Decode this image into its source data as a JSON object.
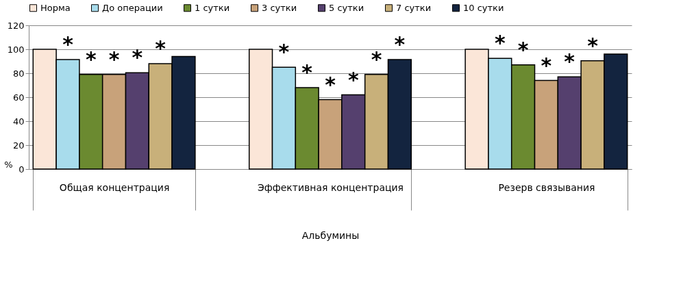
{
  "chart_data": {
    "type": "bar",
    "xlabel": "Альбумины",
    "ylabel": "%",
    "categories": [
      "Общая концентрация",
      "Эффективная концентрация",
      "Резерв связывания"
    ],
    "series": [
      {
        "name": "Норма",
        "color": "#fbe6d8",
        "values": [
          100,
          100,
          100
        ]
      },
      {
        "name": "До операции",
        "color": "#a8dcec",
        "values": [
          91.5,
          85,
          92.5
        ],
        "value_labels": [
          "*",
          "*",
          "*"
        ]
      },
      {
        "name": "1 сутки",
        "color": "#6b8a30",
        "values": [
          79,
          68,
          87
        ],
        "value_labels": [
          "*",
          "*",
          "*"
        ]
      },
      {
        "name": "3 сутки",
        "color": "#c8a27a",
        "values": [
          79,
          58,
          74
        ],
        "value_labels": [
          "*",
          "*",
          "*"
        ]
      },
      {
        "name": "5 сутки",
        "color": "#55406e",
        "values": [
          80.5,
          62,
          77
        ],
        "value_labels": [
          "*",
          "*",
          "*"
        ]
      },
      {
        "name": "7 сутки",
        "color": "#c8b07a",
        "values": [
          88,
          79,
          90.5
        ],
        "value_labels": [
          "*",
          "*",
          "*"
        ]
      },
      {
        "name": "10 сутки",
        "color": "#13243f",
        "values": [
          94,
          91.5,
          96
        ],
        "value_labels": [
          null,
          "*",
          null
        ]
      }
    ],
    "ylim": [
      0,
      120
    ],
    "yticks": [
      0,
      20,
      40,
      60,
      80,
      100,
      120
    ],
    "grid": "y",
    "legend": "top"
  }
}
